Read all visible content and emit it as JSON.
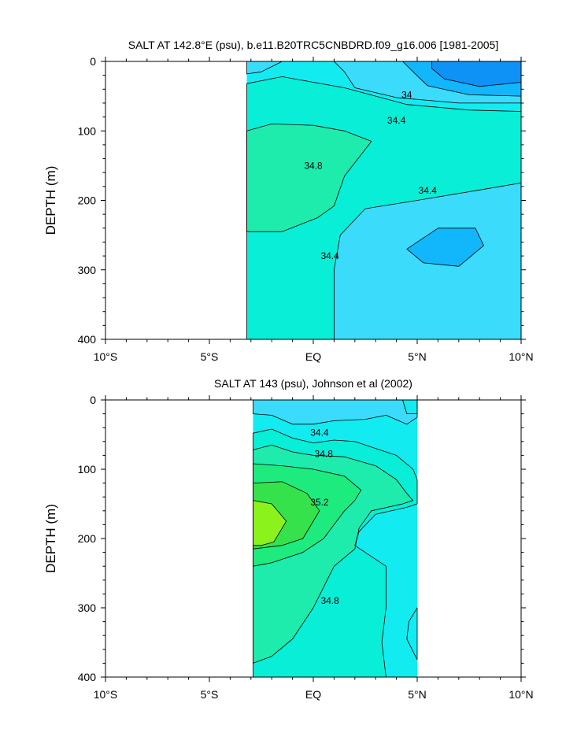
{
  "chart_data": [
    {
      "type": "contour",
      "title": "SALT AT 142.8°E (psu), b.e11.B20TRC5CNBDRD.f09_g16.006 [1981-2005]",
      "xlabel": "",
      "ylabel": "DEPTH (m)",
      "xlim": [
        -10,
        10
      ],
      "ylim": [
        0,
        400
      ],
      "y_inverted": true,
      "x_ticks": [
        {
          "value": -10,
          "label": "10°S"
        },
        {
          "value": -5,
          "label": "5°S"
        },
        {
          "value": 0,
          "label": "EQ"
        },
        {
          "value": 5,
          "label": "5°N"
        },
        {
          "value": 10,
          "label": "10°N"
        }
      ],
      "y_ticks": [
        {
          "value": 0,
          "label": "0"
        },
        {
          "value": 100,
          "label": "100"
        },
        {
          "value": 200,
          "label": "200"
        },
        {
          "value": 300,
          "label": "300"
        },
        {
          "value": 400,
          "label": "400"
        }
      ],
      "data_extent_x": [
        -3.2,
        10
      ],
      "contour_interval": 0.2,
      "contour_labels": [
        {
          "text": "34",
          "lon": 4.5,
          "depth": 48
        },
        {
          "text": "34.4",
          "lon": 4.0,
          "depth": 85
        },
        {
          "text": "34.8",
          "lon": 0.0,
          "depth": 150
        },
        {
          "text": "34.4",
          "lon": 5.5,
          "depth": 186
        },
        {
          "text": "34.4",
          "lon": 0.8,
          "depth": 280
        }
      ],
      "fill_colors": {
        "33.8": "#0f92f5",
        "34.0": "#11b6fb",
        "34.2": "#3bdcfb",
        "34.4": "#12ecf0",
        "34.6": "#08eed7",
        "34.8": "#1eecac"
      },
      "regions": [
        {
          "label": "34.4-34.6",
          "polygon": [
            [
              -3.2,
              0
            ],
            [
              10,
              0
            ],
            [
              10,
              400
            ],
            [
              -3.2,
              400
            ]
          ]
        },
        {
          "label": "34.6-34.8",
          "polygon": [
            [
              -3.2,
              32
            ],
            [
              -1.5,
              22
            ],
            [
              1.5,
              38
            ],
            [
              4.5,
              62
            ],
            [
              7.5,
              70
            ],
            [
              10,
              72
            ],
            [
              10,
              400
            ],
            [
              -3.2,
              400
            ]
          ]
        },
        {
          "label": "34.2-34.4",
          "polygon": [
            [
              -3.2,
              0
            ],
            [
              -1.5,
              0
            ],
            [
              -2.5,
              15
            ],
            [
              -3.2,
              18
            ]
          ]
        },
        {
          "label": "34.2-34.4",
          "polygon": [
            [
              1.0,
              0
            ],
            [
              10,
              0
            ],
            [
              10,
              60
            ],
            [
              7.0,
              60
            ],
            [
              4.0,
              52
            ],
            [
              2.0,
              38
            ],
            [
              1.5,
              15
            ]
          ]
        },
        {
          "label": "34.0-34.2",
          "polygon": [
            [
              4.3,
              0
            ],
            [
              10,
              0
            ],
            [
              10,
              50
            ],
            [
              7.5,
              48
            ],
            [
              5.5,
              35
            ],
            [
              4.8,
              15
            ]
          ]
        },
        {
          "label": "33.8-34.0",
          "polygon": [
            [
              5.7,
              0
            ],
            [
              10,
              0
            ],
            [
              10,
              30
            ],
            [
              8.0,
              36
            ],
            [
              6.3,
              25
            ],
            [
              5.7,
              10
            ]
          ]
        },
        {
          "label": "34.2-34.4",
          "polygon": [
            [
              1.0,
              400
            ],
            [
              1.0,
              360
            ],
            [
              1.0,
              300
            ],
            [
              1.3,
              250
            ],
            [
              2.5,
              212
            ],
            [
              5,
              200
            ],
            [
              8,
              185
            ],
            [
              10,
              175
            ],
            [
              10,
              400
            ]
          ]
        },
        {
          "label": "34.0-34.2",
          "polygon": [
            [
              4.5,
              270
            ],
            [
              6.0,
              240
            ],
            [
              7.8,
              240
            ],
            [
              8.2,
              265
            ],
            [
              7.0,
              295
            ],
            [
              5.3,
              290
            ]
          ]
        },
        {
          "label": "34.8-35.0",
          "polygon": [
            [
              -3.2,
              100
            ],
            [
              -2,
              90
            ],
            [
              0,
              92
            ],
            [
              1.5,
              100
            ],
            [
              2.8,
              115
            ],
            [
              1.5,
              165
            ],
            [
              1.0,
              208
            ],
            [
              0.2,
              225
            ],
            [
              -1.5,
              245
            ],
            [
              -3.2,
              245
            ]
          ]
        }
      ]
    },
    {
      "type": "contour",
      "title": "SALT AT 143 (psu), Johnson et al (2002)",
      "xlabel": "",
      "ylabel": "DEPTH (m)",
      "xlim": [
        -10,
        10
      ],
      "ylim": [
        0,
        400
      ],
      "y_inverted": true,
      "x_ticks": [
        {
          "value": -10,
          "label": "10°S"
        },
        {
          "value": -5,
          "label": "5°S"
        },
        {
          "value": 0,
          "label": "EQ"
        },
        {
          "value": 5,
          "label": "5°N"
        },
        {
          "value": 10,
          "label": "10°N"
        }
      ],
      "y_ticks": [
        {
          "value": 0,
          "label": "0"
        },
        {
          "value": 100,
          "label": "100"
        },
        {
          "value": 200,
          "label": "200"
        },
        {
          "value": 300,
          "label": "300"
        },
        {
          "value": 400,
          "label": "400"
        }
      ],
      "data_extent_x": [
        -2.9,
        5
      ],
      "contour_interval": 0.2,
      "contour_labels": [
        {
          "text": "34.4",
          "lon": 0.3,
          "depth": 47
        },
        {
          "text": "34.8",
          "lon": 0.5,
          "depth": 78
        },
        {
          "text": "35.2",
          "lon": 0.3,
          "depth": 148
        },
        {
          "text": "34.8",
          "lon": 0.8,
          "depth": 290
        }
      ],
      "fill_colors": {
        "34.2": "#3bdcfb",
        "34.4": "#12ecf0",
        "34.6": "#08eed7",
        "34.8": "#1eecac",
        "35.0": "#1eeb7e",
        "35.2": "#36e24c",
        "35.4": "#8cf21c"
      },
      "regions": [
        {
          "label": "34.4-34.6",
          "polygon": [
            [
              -2.9,
              0
            ],
            [
              5,
              0
            ],
            [
              5,
              400
            ],
            [
              -2.9,
              400
            ]
          ]
        },
        {
          "label": "34.2-34.4",
          "polygon": [
            [
              -2.9,
              0
            ],
            [
              5,
              0
            ],
            [
              5,
              25
            ],
            [
              4.5,
              35
            ],
            [
              3.5,
              22
            ],
            [
              2.5,
              28
            ],
            [
              1.0,
              30
            ],
            [
              0,
              35
            ],
            [
              -1.0,
              35
            ],
            [
              -2.0,
              22
            ],
            [
              -2.9,
              20
            ]
          ]
        },
        {
          "label": "34.0-34.2",
          "polygon": [
            [
              4.3,
              0
            ],
            [
              5,
              0
            ],
            [
              5,
              20
            ],
            [
              4.5,
              20
            ]
          ]
        },
        {
          "label": "34.6-34.8",
          "polygon": [
            [
              -2.9,
              48
            ],
            [
              -2.0,
              42
            ],
            [
              -1.0,
              55
            ],
            [
              0,
              62
            ],
            [
              1.0,
              58
            ],
            [
              2.0,
              60
            ],
            [
              3.0,
              70
            ],
            [
              4.0,
              80
            ],
            [
              4.8,
              100
            ],
            [
              5,
              115
            ],
            [
              5,
              150
            ],
            [
              4.5,
              155
            ],
            [
              3.0,
              165
            ],
            [
              2.2,
              190
            ],
            [
              2.0,
              210
            ],
            [
              3.5,
              240
            ],
            [
              3.5,
              300
            ],
            [
              3.3,
              350
            ],
            [
              3.5,
              400
            ],
            [
              -2.9,
              400
            ]
          ]
        },
        {
          "label": "34.8-35.0",
          "polygon": [
            [
              -2.9,
              72
            ],
            [
              -2.0,
              65
            ],
            [
              -1.0,
              75
            ],
            [
              0,
              80
            ],
            [
              1.5,
              82
            ],
            [
              3.0,
              95
            ],
            [
              4.0,
              115
            ],
            [
              4.5,
              135
            ],
            [
              4.8,
              145
            ],
            [
              4.3,
              150
            ],
            [
              2.8,
              160
            ],
            [
              2.2,
              185
            ],
            [
              2.0,
              215
            ],
            [
              1.0,
              240
            ],
            [
              0.5,
              270
            ],
            [
              0,
              300
            ],
            [
              -1.0,
              345
            ],
            [
              -2.0,
              370
            ],
            [
              -2.9,
              380
            ]
          ]
        },
        {
          "label": "35.0-35.2",
          "polygon": [
            [
              -2.9,
              92
            ],
            [
              -1.5,
              95
            ],
            [
              0,
              100
            ],
            [
              1.5,
              110
            ],
            [
              2.3,
              130
            ],
            [
              2.0,
              145
            ],
            [
              1.5,
              160
            ],
            [
              0.5,
              200
            ],
            [
              -0.5,
              220
            ],
            [
              -2.0,
              235
            ],
            [
              -2.9,
              240
            ]
          ]
        },
        {
          "label": "35.2-35.4",
          "polygon": [
            [
              -2.9,
              120
            ],
            [
              -1.5,
              118
            ],
            [
              -0.3,
              135
            ],
            [
              0.3,
              160
            ],
            [
              -0.5,
              200
            ],
            [
              -1.5,
              210
            ],
            [
              -2.9,
              215
            ]
          ]
        },
        {
          "label": "35.4-35.6",
          "polygon": [
            [
              -2.9,
              145
            ],
            [
              -2.0,
              150
            ],
            [
              -1.3,
              175
            ],
            [
              -1.9,
              205
            ],
            [
              -2.5,
              210
            ],
            [
              -2.9,
              210
            ]
          ]
        },
        {
          "label": "34.4-34.6",
          "polygon": [
            [
              5,
              300
            ],
            [
              4.6,
              320
            ],
            [
              4.5,
              345
            ],
            [
              5,
              375
            ]
          ]
        }
      ]
    }
  ]
}
